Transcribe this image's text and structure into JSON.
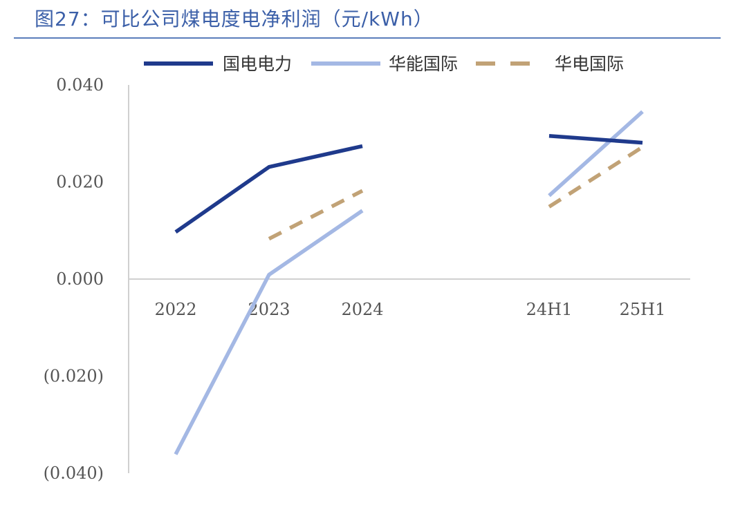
{
  "page": {
    "title": "图27：可比公司煤电度电净利润（元/kWh）"
  },
  "chart_data": {
    "type": "line",
    "title": "可比公司煤电度电净利润（元/kWh）",
    "xlabel": "",
    "ylabel": "",
    "categories": [
      "2022",
      "2023",
      "2024",
      "",
      "24H1",
      "25H1"
    ],
    "ylim": [
      -0.04,
      0.04
    ],
    "yticks": [
      {
        "value": 0.04,
        "label": "0.040",
        "color": "#666666"
      },
      {
        "value": 0.02,
        "label": "0.020",
        "color": "#666666"
      },
      {
        "value": 0.0,
        "label": "0.000",
        "color": "#666666"
      },
      {
        "value": -0.02,
        "label": "(0.020)",
        "color": "#ff0000"
      },
      {
        "value": -0.04,
        "label": "(0.040)",
        "color": "#ff0000"
      }
    ],
    "grid": false,
    "legend_position": "top",
    "series": [
      {
        "name": "国电电力",
        "color": "#1f3a8c",
        "dash": "solid",
        "values": [
          0.0097,
          0.0231,
          0.0274,
          null,
          0.0295,
          0.0281
        ]
      },
      {
        "name": "华能国际",
        "color": "#a4b8e4",
        "dash": "solid",
        "values": [
          -0.0361,
          0.0009,
          0.0141,
          null,
          0.0172,
          0.0345
        ]
      },
      {
        "name": "华电国际",
        "color": "#c1a276",
        "dash": "dashed",
        "values": [
          null,
          0.0083,
          0.0182,
          null,
          0.0149,
          0.0272
        ]
      }
    ]
  }
}
